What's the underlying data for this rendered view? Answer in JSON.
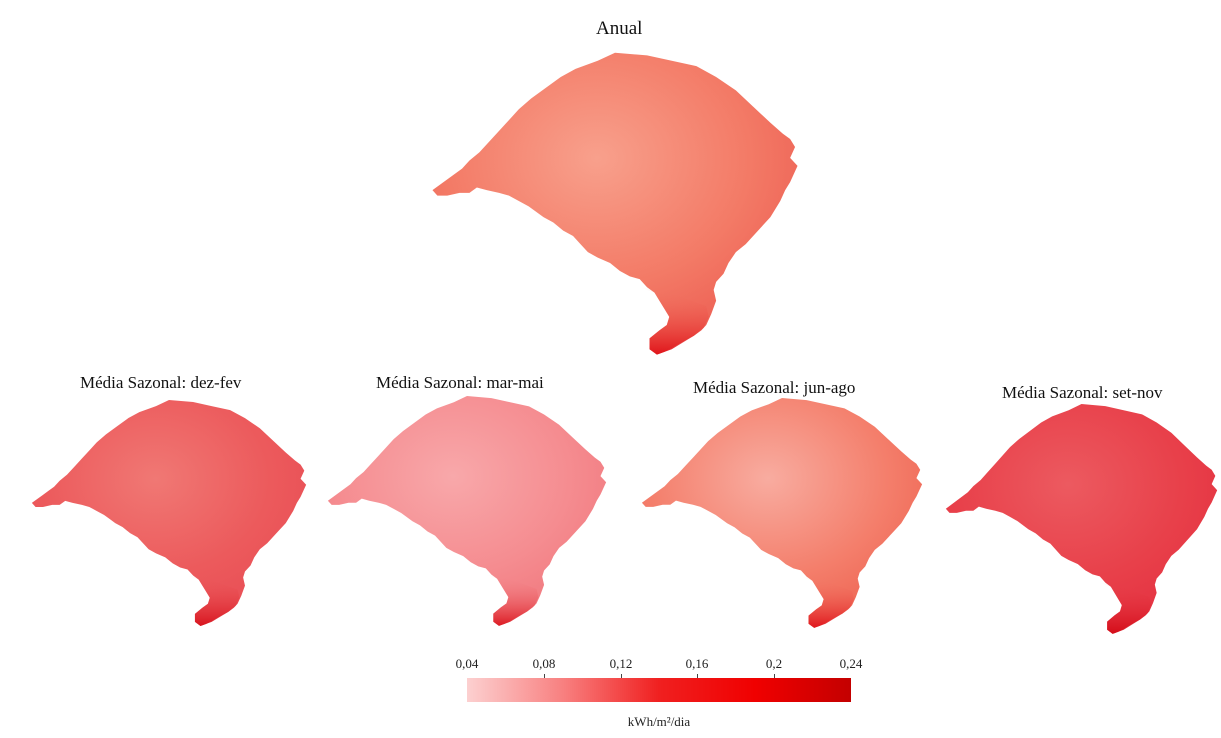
{
  "figure": {
    "panels": [
      {
        "id": "anual",
        "title": "Anual",
        "fill": "#f37a66",
        "light": "#f8a08c",
        "dark": "#ec5a50",
        "tip": "#e0141a"
      },
      {
        "id": "dez-fev",
        "title": "Média Sazonal: dez-fev",
        "fill": "#ec5a5c",
        "light": "#f07874",
        "dark": "#e84c54",
        "tip": "#d8141e"
      },
      {
        "id": "mar-mai",
        "title": "Média Sazonal: mar-mai",
        "fill": "#f58c90",
        "light": "#f8a8aa",
        "dark": "#f0767c",
        "tip": "#dc1a22"
      },
      {
        "id": "jun-ago",
        "title": "Média Sazonal: jun-ago",
        "fill": "#f47f6c",
        "light": "#f8aca0",
        "dark": "#ee6250",
        "tip": "#e0161c"
      },
      {
        "id": "set-nov",
        "title": "Média Sazonal: set-nov",
        "fill": "#e8404a",
        "light": "#ec5a60",
        "dark": "#e43040",
        "tip": "#d40c18"
      }
    ]
  },
  "legend": {
    "ticks": [
      "0,04",
      "0,08",
      "0,12",
      "0,16",
      "0,2",
      "0,24"
    ],
    "range": [
      0.04,
      0.24
    ],
    "unit": "kWh/m²/dia",
    "colors": [
      "#fcd0d0",
      "#f88080",
      "#f02020",
      "#f00000",
      "#c40000"
    ]
  }
}
